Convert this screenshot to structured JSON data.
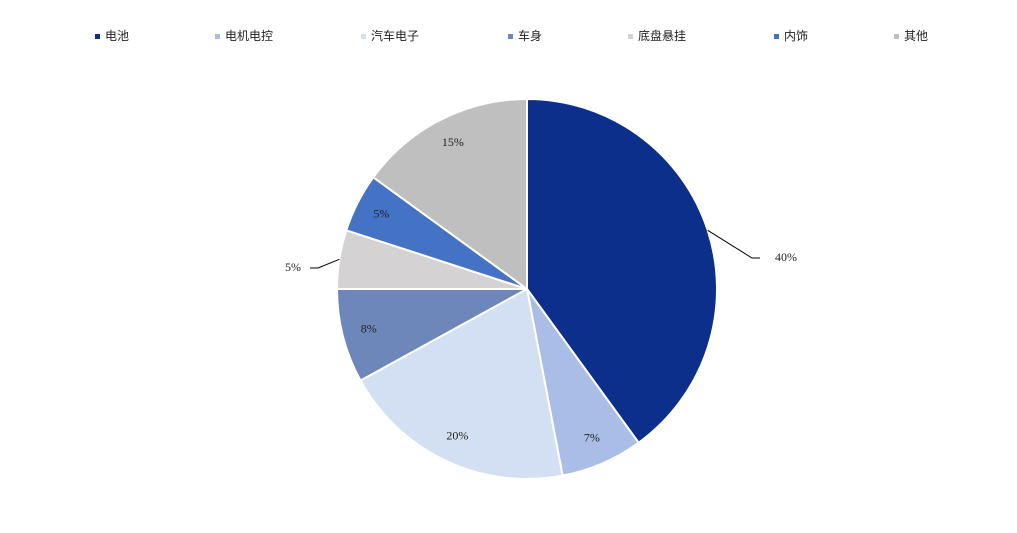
{
  "chart_data": {
    "type": "pie",
    "categories": [
      "电池",
      "电机电控",
      "汽车电子",
      "车身",
      "底盘悬挂",
      "内饰",
      "其他"
    ],
    "values": [
      40,
      7,
      20,
      8,
      5,
      5,
      15
    ],
    "value_labels": [
      "40%",
      "7%",
      "20%",
      "8%",
      "5%",
      "5%",
      "15%"
    ],
    "colors": [
      "#0b2f8a",
      "#a9bde6",
      "#d3dff2",
      "#6e87bb",
      "#d4d2d2",
      "#4472c4",
      "#bfbfbf"
    ],
    "legend": "top"
  }
}
